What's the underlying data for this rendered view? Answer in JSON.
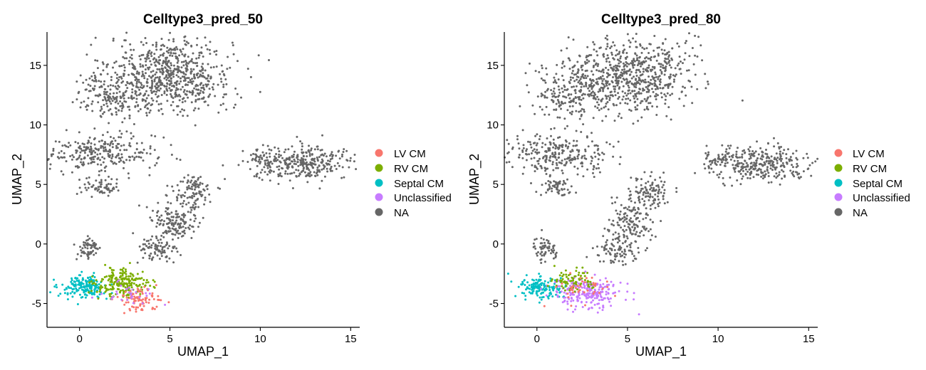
{
  "chart_data": [
    {
      "type": "scatter",
      "title": "Celltype3_pred_50",
      "xlabel": "UMAP_1",
      "ylabel": "UMAP_2",
      "xlim": [
        -1.8,
        15.5
      ],
      "ylim": [
        -7,
        17.8
      ],
      "xticks": [
        0,
        5,
        10,
        15
      ],
      "yticks": [
        -5,
        0,
        5,
        10,
        15
      ],
      "grid": false,
      "legend_position": "right",
      "legend": [
        {
          "name": "LV CM",
          "color": "#F8766D"
        },
        {
          "name": "RV CM",
          "color": "#7CAE00"
        },
        {
          "name": "Septal CM",
          "color": "#00BFC4"
        },
        {
          "name": "Unclassified",
          "color": "#C77CFF"
        },
        {
          "name": "NA",
          "color": "#666666"
        }
      ],
      "clusters": [
        {
          "label": "NA",
          "cx": 5.0,
          "cy": 14.2,
          "sx": 1.7,
          "sy": 1.6,
          "n": 720
        },
        {
          "label": "NA",
          "cx": 1.7,
          "cy": 12.5,
          "sx": 0.9,
          "sy": 1.0,
          "n": 160
        },
        {
          "label": "NA",
          "cx": 1.2,
          "cy": 7.6,
          "sx": 1.5,
          "sy": 0.8,
          "n": 260
        },
        {
          "label": "NA",
          "cx": 1.1,
          "cy": 4.8,
          "sx": 0.5,
          "sy": 0.35,
          "n": 60
        },
        {
          "label": "NA",
          "cx": 12.5,
          "cy": 6.8,
          "sx": 1.4,
          "sy": 0.7,
          "n": 300
        },
        {
          "label": "NA",
          "cx": 10.0,
          "cy": 7.0,
          "sx": 0.5,
          "sy": 0.45,
          "n": 50
        },
        {
          "label": "NA",
          "cx": 6.3,
          "cy": 4.4,
          "sx": 0.55,
          "sy": 0.75,
          "n": 100
        },
        {
          "label": "NA",
          "cx": 5.2,
          "cy": 1.8,
          "sx": 0.7,
          "sy": 0.9,
          "n": 150
        },
        {
          "label": "NA",
          "cx": 4.3,
          "cy": -0.6,
          "sx": 0.55,
          "sy": 0.6,
          "n": 80
        },
        {
          "label": "NA",
          "cx": 0.5,
          "cy": -0.4,
          "sx": 0.35,
          "sy": 0.5,
          "n": 60
        },
        {
          "label": "Septal CM",
          "cx": 0.2,
          "cy": -3.6,
          "sx": 0.6,
          "sy": 0.45,
          "n": 180
        },
        {
          "label": "RV CM",
          "cx": 2.4,
          "cy": -3.3,
          "sx": 0.75,
          "sy": 0.6,
          "n": 220
        },
        {
          "label": "LV CM",
          "cx": 3.2,
          "cy": -4.7,
          "sx": 0.55,
          "sy": 0.45,
          "n": 90
        },
        {
          "label": "Unclassified",
          "cx": 2.6,
          "cy": -4.2,
          "sx": 0.9,
          "sy": 0.6,
          "n": 30
        }
      ]
    },
    {
      "type": "scatter",
      "title": "Celltype3_pred_80",
      "xlabel": "UMAP_1",
      "ylabel": "UMAP_2",
      "xlim": [
        -1.8,
        15.5
      ],
      "ylim": [
        -7,
        17.8
      ],
      "xticks": [
        0,
        5,
        10,
        15
      ],
      "yticks": [
        -5,
        0,
        5,
        10,
        15
      ],
      "grid": false,
      "legend_position": "right",
      "legend": [
        {
          "name": "LV CM",
          "color": "#F8766D"
        },
        {
          "name": "RV CM",
          "color": "#7CAE00"
        },
        {
          "name": "Septal CM",
          "color": "#00BFC4"
        },
        {
          "name": "Unclassified",
          "color": "#C77CFF"
        },
        {
          "name": "NA",
          "color": "#666666"
        }
      ],
      "clusters": [
        {
          "label": "NA",
          "cx": 5.0,
          "cy": 14.2,
          "sx": 1.7,
          "sy": 1.6,
          "n": 720
        },
        {
          "label": "NA",
          "cx": 1.7,
          "cy": 12.5,
          "sx": 0.9,
          "sy": 1.0,
          "n": 160
        },
        {
          "label": "NA",
          "cx": 1.2,
          "cy": 7.6,
          "sx": 1.5,
          "sy": 0.8,
          "n": 260
        },
        {
          "label": "NA",
          "cx": 1.1,
          "cy": 4.8,
          "sx": 0.5,
          "sy": 0.35,
          "n": 60
        },
        {
          "label": "NA",
          "cx": 12.5,
          "cy": 6.8,
          "sx": 1.4,
          "sy": 0.7,
          "n": 300
        },
        {
          "label": "NA",
          "cx": 10.0,
          "cy": 7.0,
          "sx": 0.5,
          "sy": 0.45,
          "n": 50
        },
        {
          "label": "NA",
          "cx": 6.3,
          "cy": 4.4,
          "sx": 0.55,
          "sy": 0.75,
          "n": 100
        },
        {
          "label": "NA",
          "cx": 5.2,
          "cy": 1.8,
          "sx": 0.7,
          "sy": 0.9,
          "n": 150
        },
        {
          "label": "NA",
          "cx": 4.3,
          "cy": -0.6,
          "sx": 0.55,
          "sy": 0.6,
          "n": 80
        },
        {
          "label": "NA",
          "cx": 0.5,
          "cy": -0.4,
          "sx": 0.35,
          "sy": 0.5,
          "n": 60
        },
        {
          "label": "Septal CM",
          "cx": 0.2,
          "cy": -3.6,
          "sx": 0.6,
          "sy": 0.45,
          "n": 150
        },
        {
          "label": "Unclassified",
          "cx": 2.8,
          "cy": -4.2,
          "sx": 0.9,
          "sy": 0.65,
          "n": 220
        },
        {
          "label": "RV CM",
          "cx": 2.1,
          "cy": -3.1,
          "sx": 0.6,
          "sy": 0.5,
          "n": 80
        },
        {
          "label": "LV CM",
          "cx": 2.5,
          "cy": -3.8,
          "sx": 0.8,
          "sy": 0.6,
          "n": 40
        }
      ]
    }
  ]
}
